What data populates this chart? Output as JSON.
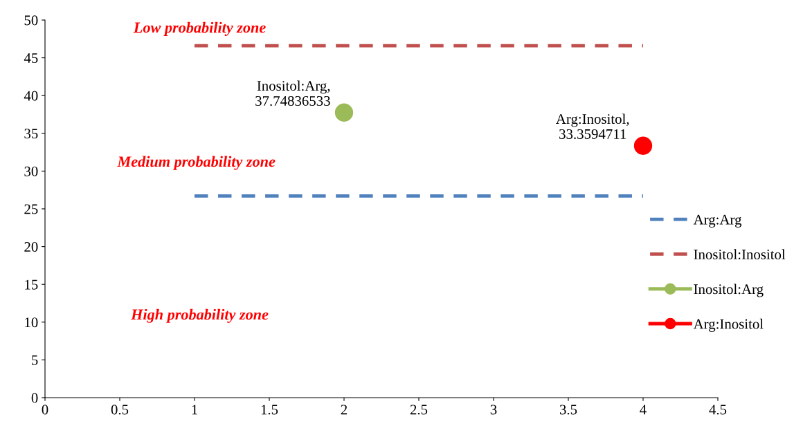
{
  "chart_data": {
    "type": "line",
    "xlim": [
      0,
      4.5
    ],
    "xticks": [
      0,
      0.5,
      1,
      1.5,
      2,
      2.5,
      3,
      3.5,
      4,
      4.5
    ],
    "ylim": [
      0,
      50
    ],
    "yticks": [
      0,
      5,
      10,
      15,
      20,
      25,
      30,
      35,
      40,
      45,
      50
    ],
    "grid": false,
    "legend": "right",
    "annotations": [
      "Low probability zone",
      "Medium probability zone",
      "High probability zone"
    ],
    "series": [
      {
        "name": "Arg:Arg",
        "color": "#4f81bd",
        "line_style": "dashed",
        "marker": "none",
        "x": [
          1,
          4
        ],
        "values": [
          26.7,
          26.7
        ]
      },
      {
        "name": "Inositol:Inositol",
        "color": "#c0504d",
        "line_style": "dashed",
        "marker": "none",
        "x": [
          1,
          4
        ],
        "values": [
          46.6,
          46.6
        ]
      },
      {
        "name": "Inositol:Arg",
        "color": "#9bbb59",
        "line_style": "solid",
        "marker": "circle",
        "x": [
          2
        ],
        "values": [
          37.74836533
        ],
        "value_labels": [
          "Inositol:Arg,\n37.74836533"
        ]
      },
      {
        "name": "Arg:Inositol",
        "color": "#ff0000",
        "line_style": "solid",
        "marker": "circle",
        "x": [
          4
        ],
        "values": [
          33.3594711
        ],
        "value_labels": [
          "Arg:Inositol,\n33.3594711"
        ]
      }
    ]
  }
}
